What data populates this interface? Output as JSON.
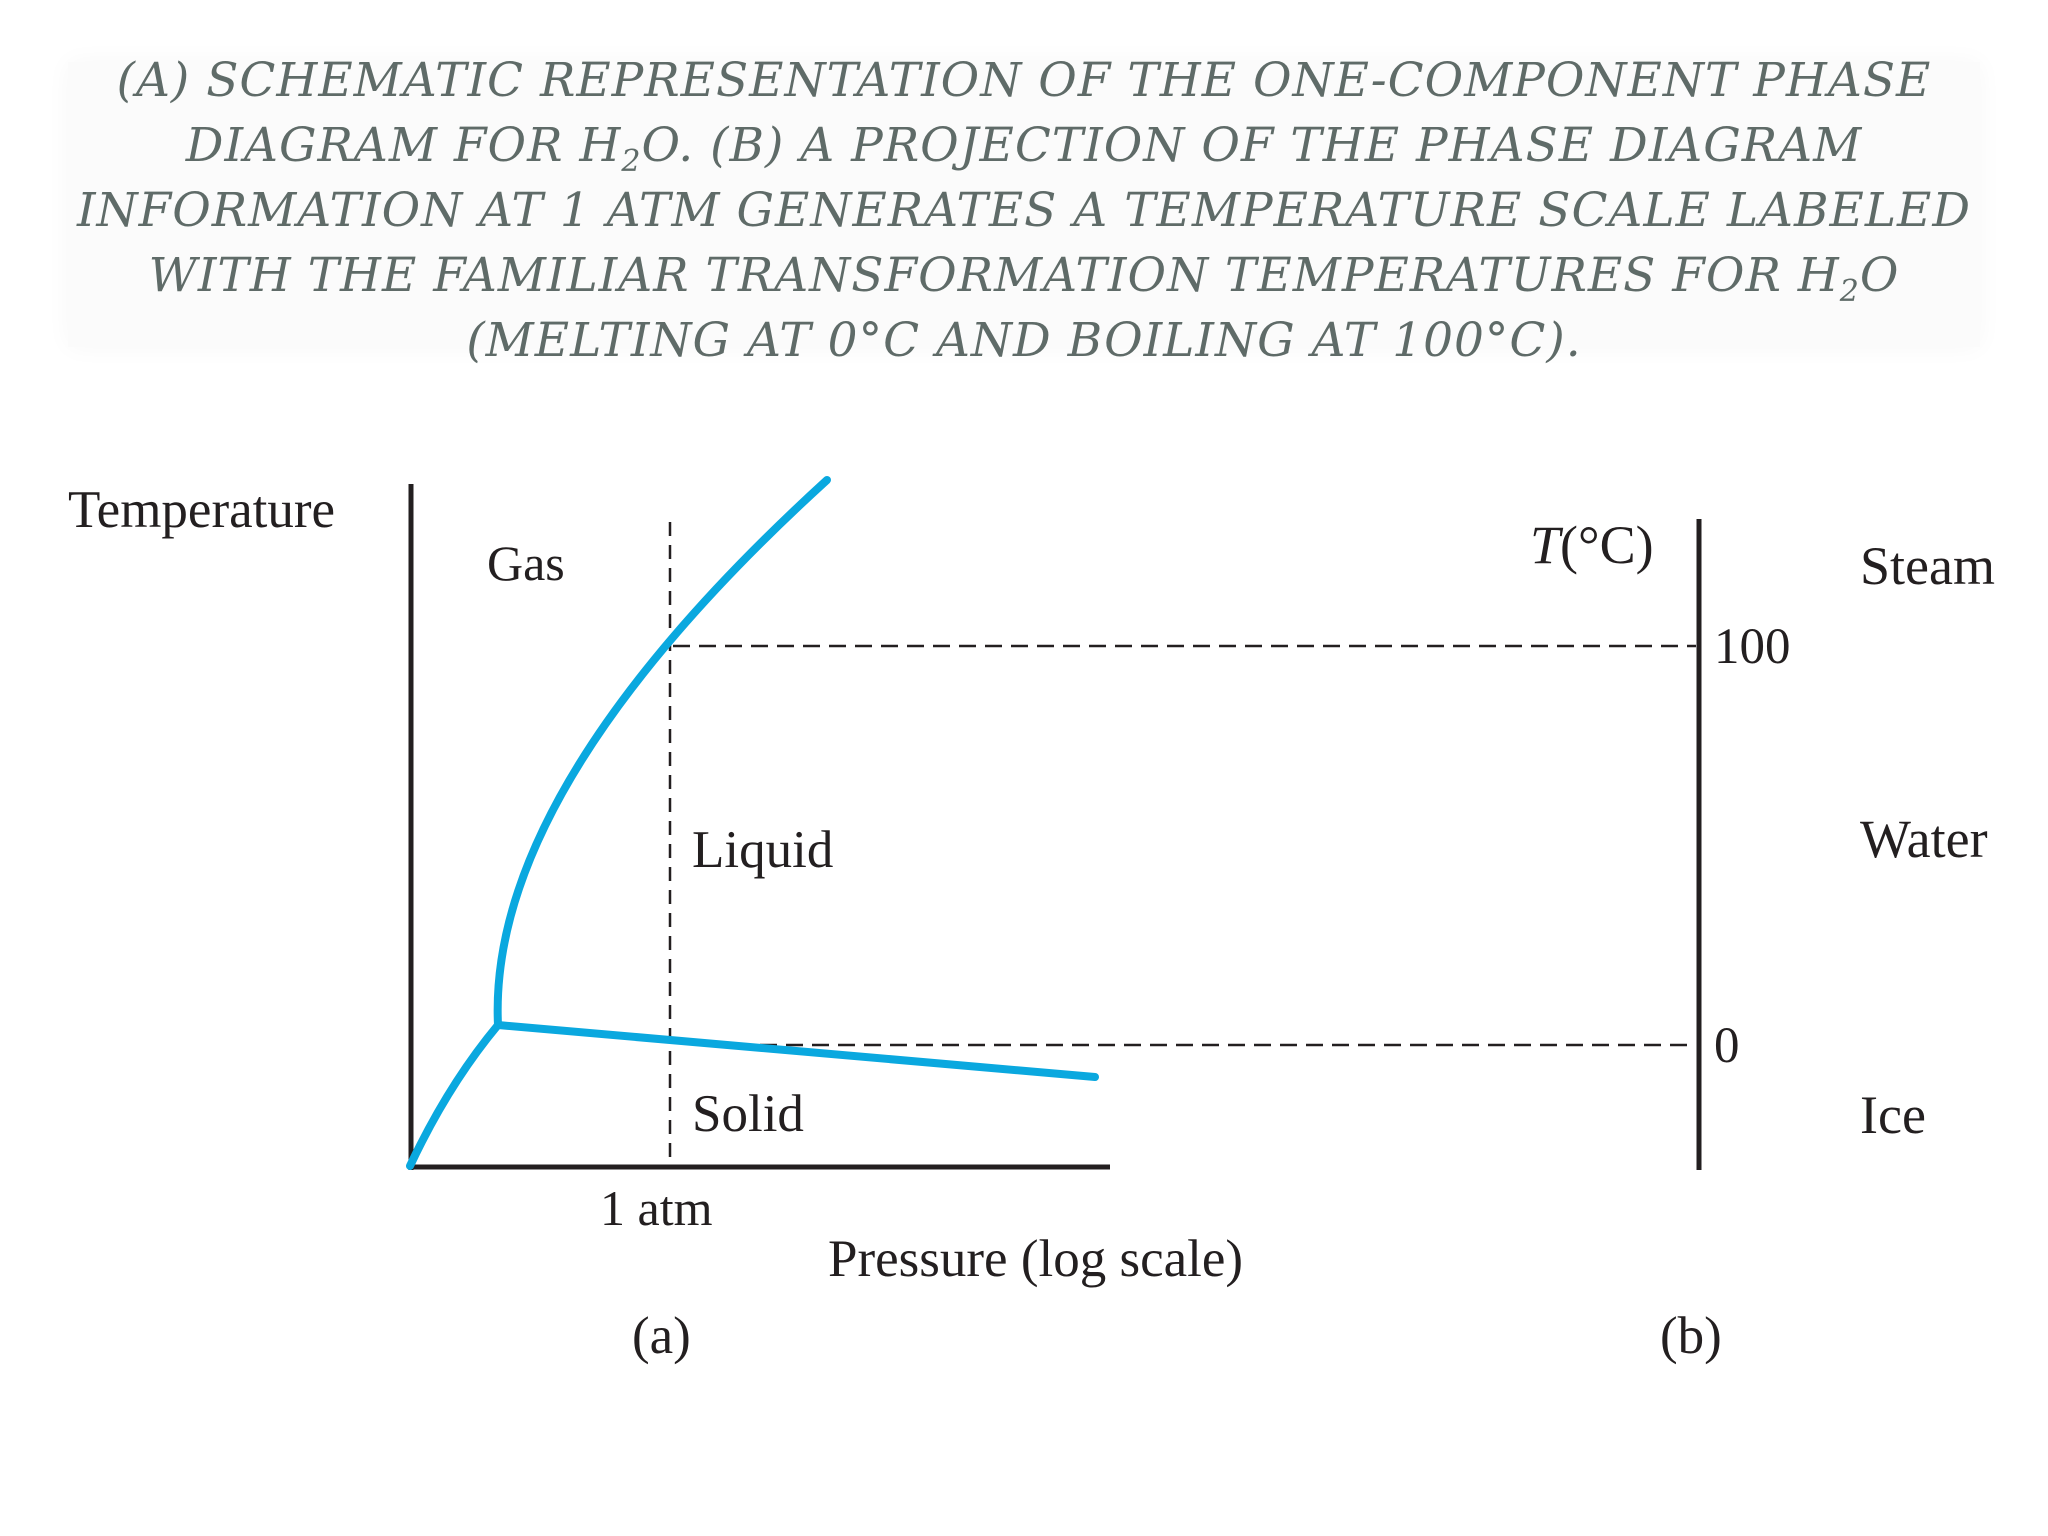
{
  "caption": {
    "line1": "(A) SCHEMATIC REPRESENTATION OF THE ONE-COMPONENT PHASE",
    "line2_a": "DIAGRAM FOR H",
    "line2_sub": "2",
    "line2_b": "O. (B) A PROJECTION OF THE PHASE DIAGRAM",
    "line3": "INFORMATION AT 1 ATM GENERATES A TEMPERATURE SCALE LABELED",
    "line4_a": "WITH THE FAMILIAR TRANSFORMATION TEMPERATURES FOR H",
    "line4_sub": "2",
    "line4_b": "O",
    "line5": "(MELTING AT 0°C AND BOILING AT 100°C)."
  },
  "panel_a": {
    "y_axis_label": "Temperature",
    "x_axis_label": "Pressure (log scale)",
    "pressure_marker": "1 atm",
    "regions": {
      "gas": "Gas",
      "liquid": "Liquid",
      "solid": "Solid"
    },
    "panel_label": "(a)"
  },
  "panel_b": {
    "axis_label_italic": "T",
    "axis_label_unit": "(°C)",
    "ticks": {
      "boiling": "100",
      "melting": "0"
    },
    "phases": {
      "steam": "Steam",
      "water": "Water",
      "ice": "Ice"
    },
    "panel_label": "(b)"
  },
  "colors": {
    "phase_boundary": "#0aa8df",
    "axis": "#231f20",
    "caption": "#5f6b68"
  }
}
